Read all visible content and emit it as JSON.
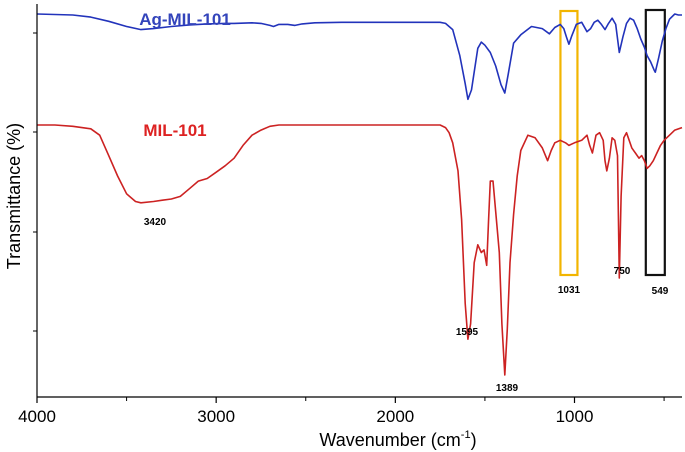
{
  "chart_data": {
    "type": "line",
    "title": "",
    "xlabel": "Wavenumber (cm",
    "xlabel_superscript": "-1",
    "xlabel_close": ")",
    "ylabel": "Transmittance (%)",
    "x_reversed": true,
    "xlim": [
      4000,
      400
    ],
    "x_ticks": [
      "4000",
      "3000",
      "2000",
      "1000"
    ],
    "y_ticks_shown": false,
    "series": [
      {
        "name": "Ag-MIL-101",
        "color": "#2233bb",
        "label_color": "#3344bb",
        "x": [
          4000,
          3800,
          3700,
          3600,
          3500,
          3420,
          3350,
          3250,
          3150,
          3050,
          2950,
          2900,
          2800,
          2750,
          2700,
          2680,
          2650,
          2600,
          2560,
          2520,
          2450,
          2300,
          2100,
          1900,
          1800,
          1750,
          1720,
          1680,
          1640,
          1610,
          1595,
          1575,
          1540,
          1520,
          1500,
          1470,
          1440,
          1410,
          1389,
          1370,
          1340,
          1300,
          1240,
          1180,
          1140,
          1110,
          1080,
          1060,
          1045,
          1031,
          1015,
          990,
          960,
          930,
          910,
          890,
          870,
          850,
          830,
          810,
          790,
          770,
          750,
          730,
          710,
          690,
          670,
          650,
          630,
          610,
          595,
          575,
          555,
          549,
          530,
          510,
          490,
          470,
          440,
          420,
          400
        ],
        "y": [
          100,
          99,
          97,
          93,
          88,
          85,
          86,
          88,
          89.5,
          90.5,
          91,
          91,
          91.5,
          91,
          89,
          88,
          90,
          90,
          89,
          90.5,
          91.5,
          92,
          92,
          92,
          92,
          92,
          91,
          85,
          60,
          33,
          18,
          27,
          67,
          73,
          70,
          63,
          50,
          32,
          24,
          42,
          72,
          80,
          88,
          86,
          81,
          87,
          90,
          86,
          78,
          71,
          79,
          90,
          92,
          83,
          86,
          92,
          94,
          90,
          85,
          91,
          96,
          90,
          63,
          78,
          91,
          96,
          94,
          86,
          76,
          68,
          60,
          54,
          46,
          44,
          58,
          74,
          86,
          95,
          100,
          99,
          99
        ]
      },
      {
        "name": "MIL-101",
        "color": "#cc2222",
        "label_color": "#dd2222",
        "x": [
          4000,
          3900,
          3800,
          3750,
          3700,
          3650,
          3600,
          3550,
          3500,
          3450,
          3420,
          3350,
          3300,
          3250,
          3200,
          3150,
          3100,
          3050,
          3000,
          2950,
          2900,
          2850,
          2800,
          2750,
          2700,
          2650,
          2600,
          2500,
          2300,
          2100,
          1900,
          1800,
          1750,
          1720,
          1700,
          1680,
          1650,
          1630,
          1610,
          1595,
          1580,
          1560,
          1540,
          1520,
          1505,
          1490,
          1480,
          1470,
          1455,
          1440,
          1420,
          1405,
          1389,
          1375,
          1360,
          1340,
          1320,
          1300,
          1260,
          1220,
          1180,
          1150,
          1130,
          1110,
          1080,
          1050,
          1031,
          1000,
          960,
          930,
          915,
          900,
          880,
          860,
          840,
          830,
          820,
          805,
          790,
          775,
          760,
          750,
          740,
          725,
          710,
          700,
          680,
          660,
          640,
          625,
          610,
          595,
          580,
          560,
          540,
          520,
          500,
          470,
          440,
          400
        ],
        "y": [
          100,
          100,
          99.5,
          99,
          98.5,
          96,
          88,
          80,
          73,
          70,
          69.5,
          70,
          70.5,
          71,
          72,
          75,
          78,
          79,
          81.5,
          84,
          87,
          92,
          96,
          98,
          99.5,
          100,
          100,
          100,
          100,
          100,
          100,
          100,
          100,
          99,
          97,
          93,
          82,
          63,
          30,
          16,
          22,
          46,
          53,
          50,
          51,
          45,
          62,
          78,
          78,
          66,
          50,
          22,
          2,
          20,
          46,
          65,
          80,
          90,
          96,
          95,
          91,
          86,
          90,
          93,
          94,
          93,
          92,
          93,
          94,
          96,
          92,
          89,
          96,
          97,
          94,
          86,
          82,
          87,
          95,
          94,
          88,
          40,
          72,
          95,
          97,
          95,
          91,
          89,
          87,
          88,
          86,
          83,
          84,
          86,
          89,
          92,
          94,
          96,
          98,
          99
        ]
      }
    ],
    "annotations": [
      {
        "label": "3420",
        "x": 3420,
        "series": "MIL-101"
      },
      {
        "label": "1595",
        "x": 1595,
        "series": "MIL-101"
      },
      {
        "label": "1389",
        "x": 1389,
        "series": "MIL-101"
      },
      {
        "label": "750",
        "x": 750,
        "series": "MIL-101"
      },
      {
        "label": "1031",
        "x": 1031,
        "series": "MIL-101"
      },
      {
        "label": "549",
        "x": 549,
        "series": "MIL-101"
      }
    ],
    "highlight_boxes": [
      {
        "center": 1031,
        "color": "#f2b500"
      },
      {
        "center": 549,
        "color": "#111111"
      }
    ]
  }
}
